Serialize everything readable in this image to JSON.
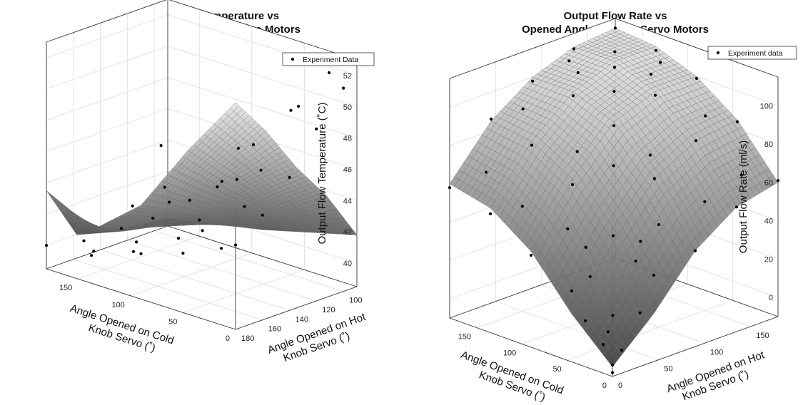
{
  "chart_data": [
    {
      "type": "surface3d",
      "title_lines": [
        "Output Flow Temperature vs",
        "Opened Angle of Knob Servo Motors"
      ],
      "xlabel_lines": [
        "Angle Opened on Cold",
        "Knob Servo (˚)"
      ],
      "ylabel_lines": [
        "Angle Opened on Hot",
        "Knob Servo (˚)"
      ],
      "zlabel": "Output Flow Temperature (˚C)",
      "x_ticks": [
        "0",
        "50",
        "100",
        "150"
      ],
      "y_ticks": [
        "100",
        "120",
        "140",
        "160",
        "180"
      ],
      "z_ticks": [
        "40",
        "42",
        "44",
        "46",
        "48",
        "50",
        "52"
      ],
      "xlim": [
        0,
        180
      ],
      "ylim": [
        90,
        180
      ],
      "zlim": [
        38.5,
        53
      ],
      "legend": "Experiment Data",
      "legend_position": "top-right",
      "grid": true,
      "surface_grid": {
        "x": [
          0,
          45,
          90,
          135,
          180
        ],
        "y": [
          90,
          112.5,
          135,
          157.5,
          180
        ],
        "z": [
          [
            41.8,
            45.0,
            47.5,
            50.5,
            53.0
          ],
          [
            41.0,
            43.0,
            45.2,
            47.0,
            49.0
          ],
          [
            40.2,
            41.5,
            42.5,
            43.5,
            44.5
          ],
          [
            39.6,
            40.2,
            40.8,
            41.2,
            42.0
          ],
          [
            39.0,
            39.2,
            39.5,
            40.0,
            43.5
          ]
        ]
      },
      "points": [
        [
          0,
          180,
          43.9
        ],
        [
          0,
          160,
          45.2
        ],
        [
          0,
          140,
          47.0
        ],
        [
          0,
          120,
          49.5
        ],
        [
          0,
          100,
          51.5
        ],
        [
          0,
          90,
          52.8
        ],
        [
          20,
          175,
          43.1
        ],
        [
          30,
          150,
          44.8
        ],
        [
          30,
          110,
          50.0
        ],
        [
          20,
          95,
          51.9
        ],
        [
          50,
          180,
          42.3
        ],
        [
          60,
          160,
          43.6
        ],
        [
          50,
          140,
          45.8
        ],
        [
          60,
          120,
          47.2
        ],
        [
          50,
          100,
          49.0
        ],
        [
          90,
          180,
          41.4
        ],
        [
          80,
          160,
          42.0
        ],
        [
          95,
          140,
          43.5
        ],
        [
          90,
          120,
          44.2
        ],
        [
          100,
          100,
          45.5
        ],
        [
          135,
          180,
          40.6
        ],
        [
          120,
          160,
          40.9
        ],
        [
          130,
          140,
          41.6
        ],
        [
          140,
          120,
          41.8
        ],
        [
          120,
          100,
          42.6
        ],
        [
          180,
          180,
          40.0
        ],
        [
          170,
          160,
          39.9
        ],
        [
          160,
          140,
          40.3
        ],
        [
          175,
          120,
          40.8
        ],
        [
          170,
          100,
          41.5
        ],
        [
          180,
          95,
          43.8
        ],
        [
          150,
          170,
          39.7
        ],
        [
          110,
          170,
          40.8
        ],
        [
          70,
          150,
          42.4
        ],
        [
          40,
          130,
          46.3
        ]
      ]
    },
    {
      "type": "surface3d",
      "title_lines": [
        "Output Flow Rate vs",
        "Opened Angle of Knob Servo Motors"
      ],
      "xlabel_lines": [
        "Angle Opened on Cold",
        "Knob Servo (˚)"
      ],
      "ylabel_lines": [
        "Angle Opened on Hot",
        "Knob Servo (˚)"
      ],
      "zlabel": "Output Flow Rate (ml/s)",
      "x_ticks": [
        "0",
        "50",
        "100",
        "150"
      ],
      "y_ticks": [
        "0",
        "50",
        "100",
        "150"
      ],
      "z_ticks": [
        "0",
        "20",
        "40",
        "60",
        "80",
        "100"
      ],
      "xlim": [
        0,
        180
      ],
      "ylim": [
        0,
        180
      ],
      "zlim": [
        -10,
        115
      ],
      "legend": "Experiment data",
      "legend_position": "top-right",
      "grid": true,
      "surface_grid": {
        "x": [
          0,
          45,
          90,
          135,
          180
        ],
        "y": [
          0,
          45,
          90,
          135,
          180
        ],
        "z": [
          [
            -5,
            15,
            40,
            55,
            60
          ],
          [
            15,
            45,
            70,
            82,
            85
          ],
          [
            40,
            70,
            92,
            100,
            100
          ],
          [
            55,
            82,
            100,
            108,
            108
          ],
          [
            60,
            85,
            100,
            108,
            110
          ]
        ]
      },
      "points": [
        [
          0,
          0,
          -8
        ],
        [
          0,
          0,
          -4
        ],
        [
          10,
          0,
          5
        ],
        [
          0,
          10,
          2
        ],
        [
          20,
          20,
          15
        ],
        [
          30,
          0,
          14
        ],
        [
          0,
          30,
          18
        ],
        [
          15,
          10,
          9
        ],
        [
          45,
          0,
          27
        ],
        [
          0,
          45,
          35
        ],
        [
          45,
          45,
          48
        ],
        [
          60,
          30,
          42
        ],
        [
          30,
          60,
          45
        ],
        [
          45,
          20,
          31
        ],
        [
          20,
          45,
          39
        ],
        [
          90,
          0,
          38
        ],
        [
          0,
          90,
          40
        ],
        [
          90,
          45,
          67
        ],
        [
          45,
          90,
          70
        ],
        [
          90,
          90,
          90
        ],
        [
          70,
          70,
          76
        ],
        [
          100,
          60,
          80
        ],
        [
          60,
          100,
          78
        ],
        [
          135,
          0,
          52
        ],
        [
          0,
          135,
          55
        ],
        [
          135,
          45,
          80
        ],
        [
          45,
          135,
          82
        ],
        [
          135,
          90,
          98
        ],
        [
          90,
          135,
          98
        ],
        [
          135,
          135,
          105
        ],
        [
          180,
          0,
          58
        ],
        [
          0,
          180,
          61
        ],
        [
          180,
          45,
          86
        ],
        [
          45,
          180,
          84
        ],
        [
          180,
          90,
          98
        ],
        [
          90,
          180,
          99
        ],
        [
          180,
          135,
          107
        ],
        [
          135,
          180,
          106
        ],
        [
          180,
          180,
          110
        ],
        [
          160,
          20,
          66
        ],
        [
          20,
          160,
          64
        ],
        [
          110,
          110,
          101
        ],
        [
          150,
          110,
          104
        ],
        [
          110,
          150,
          103
        ],
        [
          160,
          60,
          92
        ],
        [
          60,
          160,
          88
        ],
        [
          120,
          20,
          55
        ],
        [
          20,
          120,
          57
        ],
        [
          75,
          25,
          50
        ],
        [
          25,
          75,
          52
        ],
        [
          150,
          150,
          108
        ],
        [
          170,
          120,
          105
        ],
        [
          120,
          170,
          104
        ]
      ]
    }
  ]
}
